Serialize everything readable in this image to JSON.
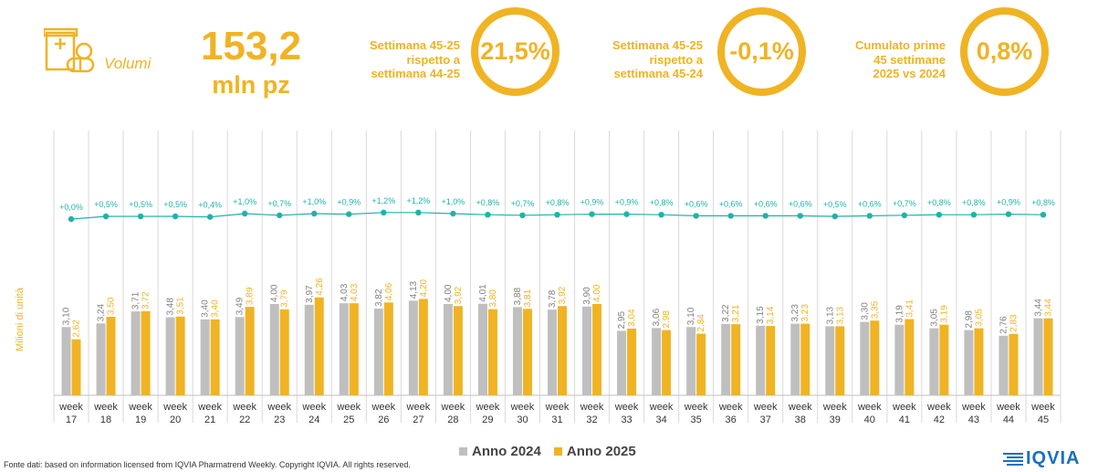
{
  "header": {
    "volume_label": "Volumi",
    "total_value": "153,2",
    "total_unit": "mln pz",
    "kpis": [
      {
        "label_lines": [
          "Settimana 45-25",
          "rispetto a",
          "settimana 44-25"
        ],
        "value": "21,5%"
      },
      {
        "label_lines": [
          "Settimana 45-25",
          "rispetto a",
          "settimana 45-24"
        ],
        "value": "-0,1%"
      },
      {
        "label_lines": [
          "Cumulato prime",
          "45 settimane",
          "2025 vs 2024"
        ],
        "value": "0,8%"
      }
    ]
  },
  "colors": {
    "accent": "#f0b323",
    "series_2024": "#bfbfbf",
    "series_2025": "#f0b323",
    "line": "#1fb3a8"
  },
  "chart_data": {
    "type": "bar",
    "ylabel": "Milioni di unità",
    "categories": [
      "week 17",
      "week 18",
      "week 19",
      "week 20",
      "week 21",
      "week 22",
      "week 23",
      "week 24",
      "week 25",
      "week 26",
      "week 27",
      "week 28",
      "week 29",
      "week 30",
      "week 31",
      "week 32",
      "week 33",
      "week 34",
      "week 35",
      "week 36",
      "week 37",
      "week 38",
      "week 39",
      "week 40",
      "week 41",
      "week 42",
      "week 43",
      "week 44",
      "week 45"
    ],
    "series": [
      {
        "name": "Anno 2024",
        "values": [
          3.1,
          3.24,
          3.71,
          3.48,
          3.4,
          3.49,
          4.0,
          3.97,
          4.03,
          3.82,
          4.13,
          4.0,
          4.01,
          3.88,
          3.78,
          3.9,
          2.95,
          3.06,
          3.1,
          3.22,
          3.15,
          3.23,
          3.13,
          3.3,
          3.19,
          3.05,
          2.98,
          2.76,
          3.44
        ],
        "labels": [
          "3,10",
          "3,24",
          "3,71",
          "3,48",
          "3,40",
          "3,49",
          "4,00",
          "3,97",
          "4,03",
          "3,82",
          "4,13",
          "4,00",
          "4,01",
          "3,88",
          "3,78",
          "3,90",
          "2,95",
          "3,06",
          "3,10",
          "3,22",
          "3,15",
          "3,23",
          "3,13",
          "3,30",
          "3,19",
          "3,05",
          "2,98",
          "2,76",
          "3,44"
        ]
      },
      {
        "name": "Anno 2025",
        "values": [
          2.62,
          3.5,
          3.72,
          3.51,
          3.4,
          3.89,
          3.79,
          4.26,
          4.03,
          4.06,
          4.2,
          3.92,
          3.8,
          3.81,
          3.92,
          4.0,
          3.04,
          2.98,
          2.84,
          3.21,
          3.14,
          3.23,
          3.13,
          3.35,
          3.41,
          3.19,
          3.05,
          2.83,
          3.44
        ],
        "labels": [
          "2,62",
          "3,50",
          "3,72",
          "3,51",
          "3,40",
          "3,89",
          "3,79",
          "4,26",
          "4,03",
          "4,06",
          "4,20",
          "3,92",
          "3,80",
          "3,81",
          "3,92",
          "4,00",
          "3,04",
          "2,98",
          "2,84",
          "3,21",
          "3,14",
          "3,23",
          "3,13",
          "3,35",
          "3,41",
          "3,19",
          "3,05",
          "2,83",
          "3,44"
        ]
      }
    ],
    "cumulative_growth": {
      "values": [
        0.0,
        0.5,
        0.5,
        0.5,
        0.4,
        1.0,
        0.7,
        1.0,
        0.9,
        1.2,
        1.2,
        1.0,
        0.8,
        0.7,
        0.8,
        0.9,
        0.9,
        0.8,
        0.6,
        0.6,
        0.6,
        0.6,
        0.5,
        0.6,
        0.7,
        0.8,
        0.8,
        0.9,
        0.8
      ],
      "labels": [
        "+0,0%",
        "+0,5%",
        "+0,5%",
        "+0,5%",
        "+0,4%",
        "+1,0%",
        "+0,7%",
        "+1,0%",
        "+0,9%",
        "+1,2%",
        "+1,2%",
        "+1,0%",
        "+0,8%",
        "+0,7%",
        "+0,8%",
        "+0,9%",
        "+0,9%",
        "+0,8%",
        "+0,6%",
        "+0,6%",
        "+0,6%",
        "+0,6%",
        "+0,5%",
        "+0,6%",
        "+0,7%",
        "+0,8%",
        "+0,8%",
        "+0,9%",
        "+0,8%"
      ]
    },
    "ylim": [
      0,
      5
    ],
    "grid": "vertical separators",
    "legend": "bottom-center"
  },
  "footer": {
    "source": "Fonte dati: based on information licensed from IQVIA Pharmatrend Weekly. Copyright IQVIA. All rights reserved.",
    "logo_text": "IQVIA"
  }
}
